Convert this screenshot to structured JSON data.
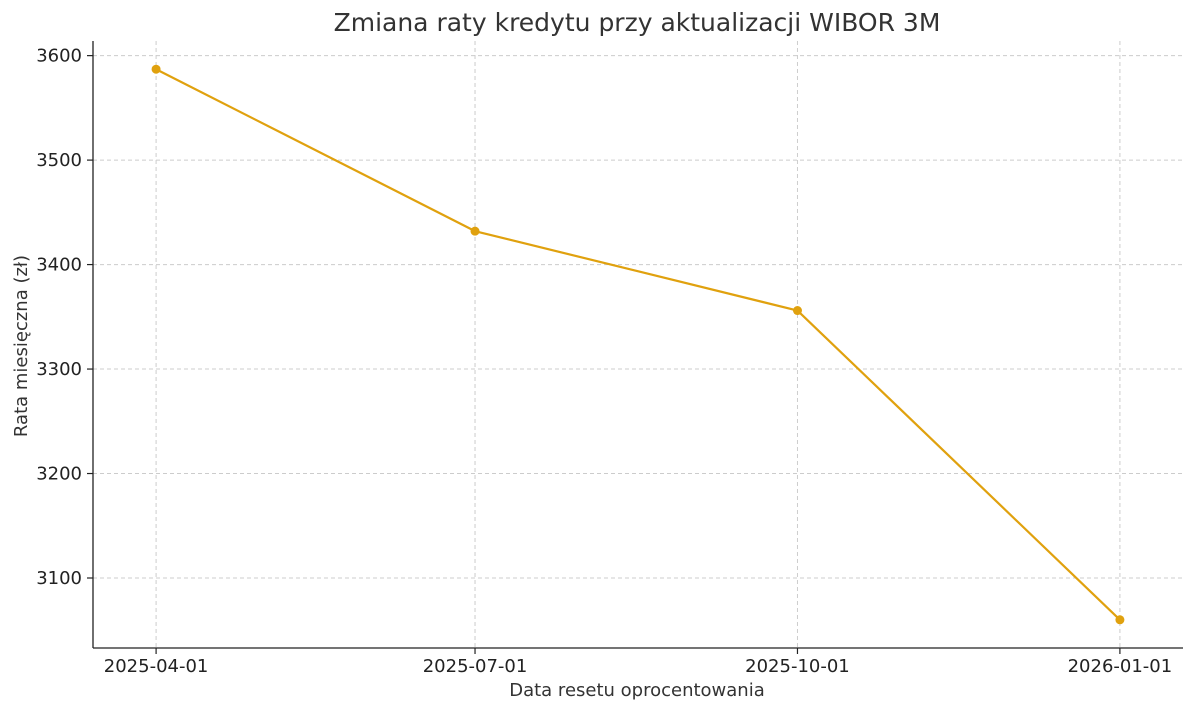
{
  "chart_data": {
    "type": "line",
    "title": "Zmiana raty kredytu przy aktualizacji WIBOR 3M",
    "xlabel": "Data resetu oprocentowania",
    "ylabel": "Rata miesięczna (zł)",
    "x": [
      "2025-04-01",
      "2025-07-01",
      "2025-10-01",
      "2026-01-01"
    ],
    "series": [
      {
        "values": [
          3587,
          3432,
          3356,
          3060
        ],
        "color": "#E0A10E"
      }
    ],
    "yticks": [
      3100,
      3200,
      3300,
      3400,
      3500,
      3600
    ],
    "ylim": [
      3033,
      3614
    ],
    "xlim": [
      "2025-03-14",
      "2026-01-19"
    ],
    "grid": true,
    "marker": "circle"
  }
}
